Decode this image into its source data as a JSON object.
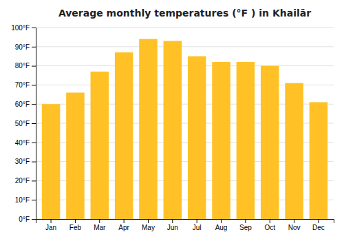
{
  "chart_data": {
    "type": "bar",
    "title": "Average monthly temperatures (°F ) in Khailār",
    "categories": [
      "Jan",
      "Feb",
      "Mar",
      "Apr",
      "May",
      "Jun",
      "Jul",
      "Aug",
      "Sep",
      "Oct",
      "Nov",
      "Dec"
    ],
    "values": [
      60,
      66,
      77,
      87,
      94,
      93,
      85,
      82,
      82,
      80,
      71,
      61
    ],
    "color": "#FFC125",
    "ylim": [
      0,
      100
    ],
    "yticks": [
      {
        "value": 0,
        "label": "0°F"
      },
      {
        "value": 10,
        "label": "10°F"
      },
      {
        "value": 20,
        "label": "20°F"
      },
      {
        "value": 30,
        "label": "30°F"
      },
      {
        "value": 40,
        "label": "40°F"
      },
      {
        "value": 50,
        "label": "50°F"
      },
      {
        "value": 60,
        "label": "60°F"
      },
      {
        "value": 70,
        "label": "70°F"
      },
      {
        "value": 80,
        "label": "80°F"
      },
      {
        "value": 90,
        "label": "90°F"
      },
      {
        "value": 100,
        "label": "100°F"
      }
    ],
    "grid": true
  }
}
